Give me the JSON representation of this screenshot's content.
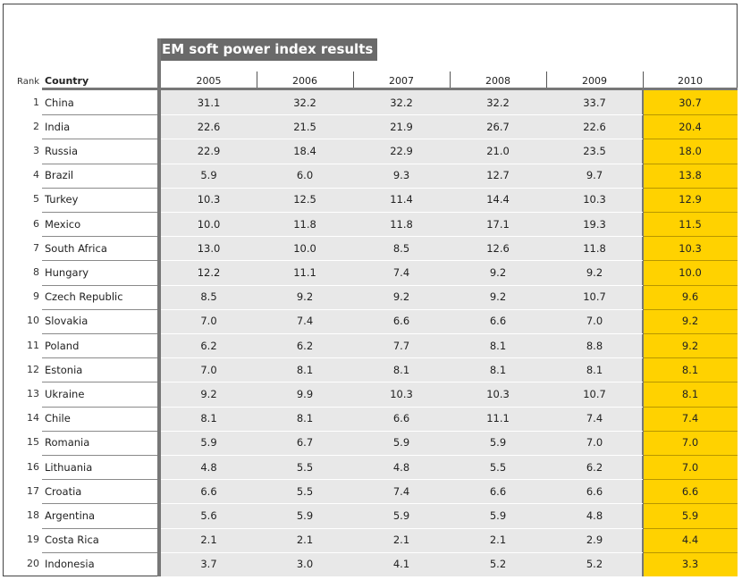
{
  "chart_data": {
    "type": "table",
    "title": "EM soft power index results",
    "columns": [
      "Rank",
      "Country",
      "2005",
      "2006",
      "2007",
      "2008",
      "2009",
      "2010"
    ],
    "highlight_column": "2010",
    "highlight_color": "#ffd200",
    "rows": [
      {
        "rank": "1",
        "country": "China",
        "values": [
          "31.1",
          "32.2",
          "32.2",
          "32.2",
          "33.7",
          "30.7"
        ]
      },
      {
        "rank": "2",
        "country": "India",
        "values": [
          "22.6",
          "21.5",
          "21.9",
          "26.7",
          "22.6",
          "20.4"
        ]
      },
      {
        "rank": "3",
        "country": "Russia",
        "values": [
          "22.9",
          "18.4",
          "22.9",
          "21.0",
          "23.5",
          "18.0"
        ]
      },
      {
        "rank": "4",
        "country": "Brazil",
        "values": [
          "5.9",
          "6.0",
          "9.3",
          "12.7",
          "9.7",
          "13.8"
        ]
      },
      {
        "rank": "5",
        "country": "Turkey",
        "values": [
          "10.3",
          "12.5",
          "11.4",
          "14.4",
          "10.3",
          "12.9"
        ]
      },
      {
        "rank": "6",
        "country": "Mexico",
        "values": [
          "10.0",
          "11.8",
          "11.8",
          "17.1",
          "19.3",
          "11.5"
        ]
      },
      {
        "rank": "7",
        "country": "South Africa",
        "values": [
          "13.0",
          "10.0",
          "8.5",
          "12.6",
          "11.8",
          "10.3"
        ]
      },
      {
        "rank": "8",
        "country": "Hungary",
        "values": [
          "12.2",
          "11.1",
          "7.4",
          "9.2",
          "9.2",
          "10.0"
        ]
      },
      {
        "rank": "9",
        "country": "Czech Republic",
        "values": [
          "8.5",
          "9.2",
          "9.2",
          "9.2",
          "10.7",
          "9.6"
        ]
      },
      {
        "rank": "10",
        "country": "Slovakia",
        "values": [
          "7.0",
          "7.4",
          "6.6",
          "6.6",
          "7.0",
          "9.2"
        ]
      },
      {
        "rank": "11",
        "country": "Poland",
        "values": [
          "6.2",
          "6.2",
          "7.7",
          "8.1",
          "8.8",
          "9.2"
        ]
      },
      {
        "rank": "12",
        "country": "Estonia",
        "values": [
          "7.0",
          "8.1",
          "8.1",
          "8.1",
          "8.1",
          "8.1"
        ]
      },
      {
        "rank": "13",
        "country": "Ukraine",
        "values": [
          "9.2",
          "9.9",
          "10.3",
          "10.3",
          "10.7",
          "8.1"
        ]
      },
      {
        "rank": "14",
        "country": "Chile",
        "values": [
          "8.1",
          "8.1",
          "6.6",
          "11.1",
          "7.4",
          "7.4"
        ]
      },
      {
        "rank": "15",
        "country": "Romania",
        "values": [
          "5.9",
          "6.7",
          "5.9",
          "5.9",
          "7.0",
          "7.0"
        ]
      },
      {
        "rank": "16",
        "country": "Lithuania",
        "values": [
          "4.8",
          "5.5",
          "4.8",
          "5.5",
          "6.2",
          "7.0"
        ]
      },
      {
        "rank": "17",
        "country": "Croatia",
        "values": [
          "6.6",
          "5.5",
          "7.4",
          "6.6",
          "6.6",
          "6.6"
        ]
      },
      {
        "rank": "18",
        "country": "Argentina",
        "values": [
          "5.6",
          "5.9",
          "5.9",
          "5.9",
          "4.8",
          "5.9"
        ]
      },
      {
        "rank": "19",
        "country": "Costa Rica",
        "values": [
          "2.1",
          "2.1",
          "2.1",
          "2.1",
          "2.9",
          "4.4"
        ]
      },
      {
        "rank": "20",
        "country": "Indonesia",
        "values": [
          "3.7",
          "3.0",
          "4.1",
          "5.2",
          "5.2",
          "3.3"
        ]
      }
    ]
  }
}
